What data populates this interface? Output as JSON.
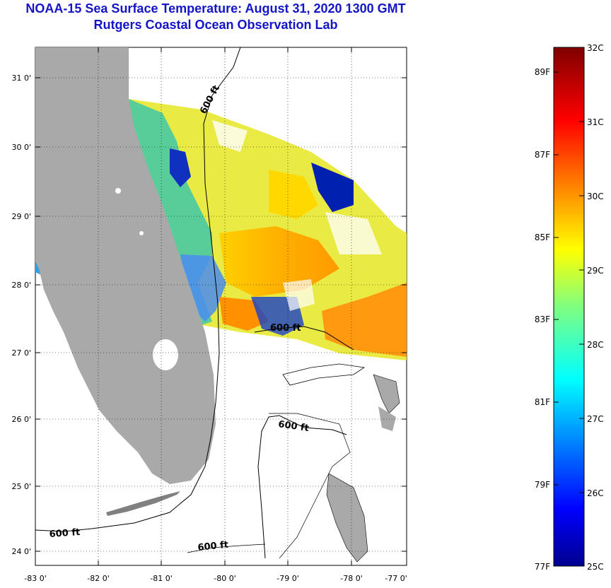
{
  "title": {
    "line1": "NOAA-15 Sea Surface Temperature:  August 31, 2020 1300 GMT",
    "line2": "Rutgers Coastal Ocean Observation Lab"
  },
  "map": {
    "lat_labels": [
      "31 0'",
      "30 0'",
      "29 0'",
      "28 0'",
      "27 0'",
      "26 0'",
      "25 0'",
      "24 0'"
    ],
    "lon_labels": [
      "-83 0'",
      "-82 0'",
      "-81 0'",
      "-80 0'",
      "-79 0'",
      "-78 0'",
      "-77 0'"
    ],
    "contour_label": "600 ft",
    "colors": {
      "land": "#a9a9a9",
      "grid": "#000000",
      "title": "#1414c8"
    }
  },
  "colorbar": {
    "min_label": "77F",
    "max_label": "32C",
    "fahrenheit_labels": [
      "89F",
      "87F",
      "85F",
      "83F",
      "81F",
      "79F",
      "77F"
    ],
    "celsius_labels": [
      "32C",
      "31C",
      "30C",
      "29C",
      "28C",
      "27C",
      "26C",
      "25C"
    ],
    "colormap": "jet",
    "range_c": [
      25,
      32
    ]
  }
}
